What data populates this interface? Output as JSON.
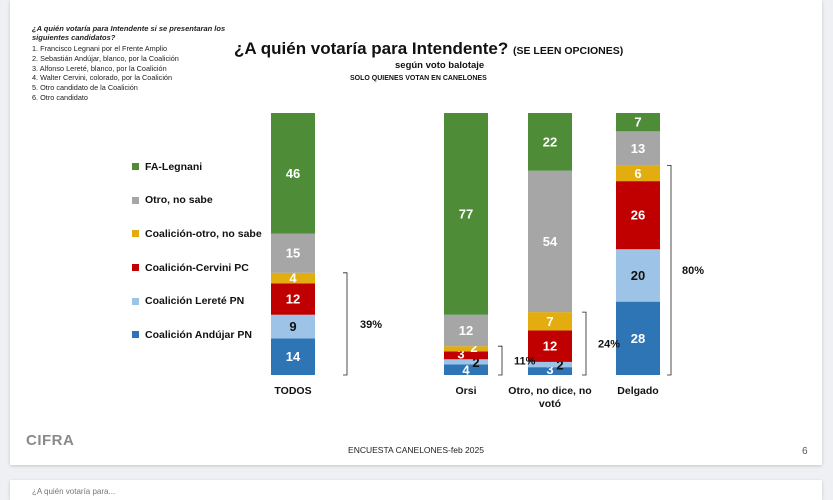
{
  "question_intro": "¿A quién votaría para Intendente si se presentaran los siguientes candidatos?",
  "options": [
    "1. Francisco Legnani por el Frente Amplio",
    "2. Sebastián Andújar, blanco, por la Coalición",
    "3. Alfonso Lereté, blanco, por la Coalición",
    "4.  Walter Cervini, colorado, por la Coalición",
    "5. Otro candidato de la Coalición",
    "6. Otro candidato"
  ],
  "title": "¿A quién votaría para Intendente?",
  "title_tag": "(SE LEEN OPCIONES)",
  "subtitle": "según voto balotaje",
  "subnote": "SOLO QUIENES VOTAN EN CANELONES",
  "footer": "ENCUESTA CANELONES-feb 2025",
  "page_number": "6",
  "logo_text": "CIFRA",
  "next_slide_text": "¿A quién votaría para...",
  "colors": {
    "fa": "#4e8c38",
    "otro": "#a6a6a6",
    "coal_otro": "#e3ac0f",
    "cervini": "#c00000",
    "lerete": "#9dc3e6",
    "andujar": "#2e75b6"
  },
  "chart_data": {
    "type": "bar",
    "stacked": true,
    "title": "¿A quién votaría para Intendente? (SE LEEN OPCIONES)",
    "subtitle": "según voto balotaje",
    "ylim": [
      0,
      100
    ],
    "categories": [
      "TODOS",
      "Orsi",
      "Otro, no dice, no votó",
      "Delgado"
    ],
    "series": [
      {
        "name": "Coalición Andújar PN",
        "color": "#2e75b6",
        "values": [
          14,
          4,
          3,
          28
        ]
      },
      {
        "name": "Coalición Lereté PN",
        "color": "#9dc3e6",
        "values": [
          9,
          2,
          2,
          20
        ]
      },
      {
        "name": "Coalición-Cervini PC",
        "color": "#c00000",
        "values": [
          12,
          3,
          12,
          26
        ]
      },
      {
        "name": "Coalición-otro, no sabe",
        "color": "#e3ac0f",
        "values": [
          4,
          2,
          7,
          6
        ]
      },
      {
        "name": "Otro, no sabe",
        "color": "#a6a6a6",
        "values": [
          15,
          12,
          54,
          13
        ]
      },
      {
        "name": "FA-Legnani",
        "color": "#4e8c38",
        "values": [
          46,
          77,
          22,
          7
        ]
      }
    ],
    "legend_order": [
      "FA-Legnani",
      "Otro, no sabe",
      "Coalición-otro, no sabe",
      "Coalición-Cervini PC",
      "Coalición Lereté PN",
      "Coalición Andújar PN"
    ],
    "coalition_totals": [
      "39%",
      "11%",
      "24%",
      "80%"
    ]
  }
}
